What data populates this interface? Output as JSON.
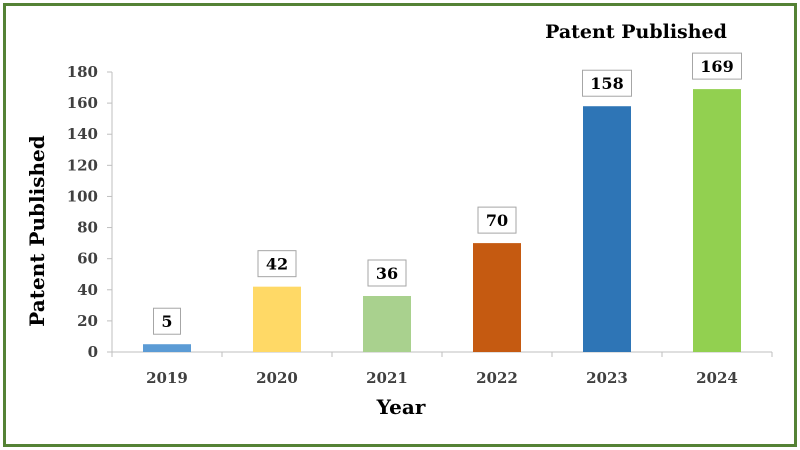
{
  "chart_data": {
    "type": "bar",
    "title": "Patent Published",
    "xlabel": "Year",
    "ylabel": "Patent Published",
    "categories": [
      "2019",
      "2020",
      "2021",
      "2022",
      "2023",
      "2024"
    ],
    "values": [
      5,
      42,
      36,
      70,
      158,
      169
    ],
    "colors": [
      "#5B9BD5",
      "#FFD966",
      "#A9D18E",
      "#C55A11",
      "#2E75B6",
      "#92D050"
    ],
    "ylim": [
      0,
      180
    ],
    "yticks": [
      0,
      20,
      40,
      60,
      80,
      100,
      120,
      140,
      160,
      180
    ],
    "grid": false,
    "legend": "none",
    "frame_color": "#548235"
  }
}
